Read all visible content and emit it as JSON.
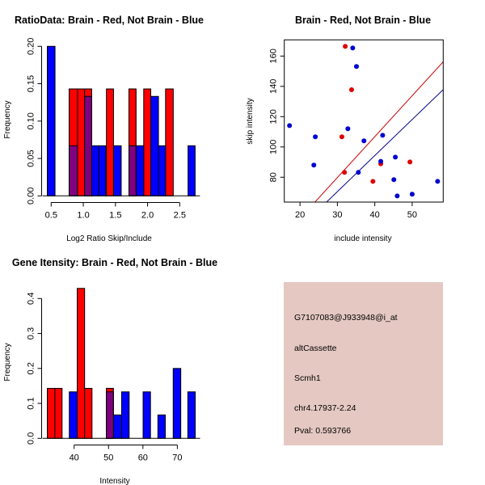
{
  "colors": {
    "red": "#ff0000",
    "blue": "#0000ff",
    "overlap": "#800080",
    "line_red": "#cc0000",
    "line_blue": "#00008b",
    "info_bg": "#e5c8c2",
    "pval": "#8b0000"
  },
  "chart_data": [
    {
      "type": "bar",
      "title": "RatioData: Brain - Red, Not Brain - Blue",
      "xlabel": "Log2 Ratio Skip/Include",
      "ylabel": "Frequency",
      "xticks": [
        "0.5",
        "1.0",
        "1.5",
        "2.0",
        "2.5"
      ],
      "xtick_values": [
        0.5,
        1.0,
        1.5,
        2.0,
        2.5
      ],
      "yticks": [
        "0.00",
        "0.05",
        "0.10",
        "0.15",
        "0.20"
      ],
      "ytick_values": [
        0,
        0.05,
        0.1,
        0.15,
        0.2
      ],
      "series": [
        {
          "name": "Brain",
          "color": "red",
          "bins": [
            [
              0.78,
              0.91,
              0.143
            ],
            [
              0.91,
              1.02,
              0.143
            ],
            [
              1.02,
              1.13,
              0.143
            ],
            [
              1.36,
              1.47,
              0.143
            ],
            [
              1.71,
              1.82,
              0.143
            ],
            [
              1.94,
              2.05,
              0.143
            ],
            [
              2.28,
              2.4,
              0.143
            ]
          ]
        },
        {
          "name": "Not Brain",
          "color": "blue",
          "bins": [
            [
              0.44,
              0.56,
              0.2
            ],
            [
              0.78,
              0.91,
              0.067
            ],
            [
              1.02,
              1.13,
              0.133
            ],
            [
              1.13,
              1.24,
              0.067
            ],
            [
              1.24,
              1.35,
              0.067
            ],
            [
              1.47,
              1.59,
              0.067
            ],
            [
              1.71,
              1.82,
              0.067
            ],
            [
              1.82,
              1.94,
              0.067
            ],
            [
              2.05,
              2.17,
              0.133
            ],
            [
              2.17,
              2.28,
              0.067
            ],
            [
              2.63,
              2.74,
              0.067
            ]
          ]
        }
      ]
    },
    {
      "type": "scatter",
      "title": "Brain - Red, Not Brain - Blue",
      "xlabel": "include intensity",
      "ylabel": "skip intensity",
      "xlim": [
        15.8,
        58.3
      ],
      "ylim": [
        63.6,
        170.7
      ],
      "xticks": [
        "20",
        "30",
        "40",
        "50"
      ],
      "xtick_values": [
        20,
        30,
        40,
        50
      ],
      "yticks": [
        "80",
        "100",
        "120",
        "140",
        "160"
      ],
      "ytick_values": [
        80,
        100,
        120,
        140,
        160
      ],
      "series": [
        {
          "name": "Brain",
          "color": "red",
          "points": [
            [
              32.1,
              166.4
            ],
            [
              33.8,
              137.8
            ],
            [
              31.2,
              106.7
            ],
            [
              31.9,
              83.2
            ],
            [
              39.5,
              77.3
            ],
            [
              41.6,
              88.9
            ],
            [
              49.4,
              90.1
            ]
          ],
          "fit": {
            "slope": 2.7,
            "intercept": -1.2
          }
        },
        {
          "name": "Not Brain",
          "color": "blue",
          "points": [
            [
              17.2,
              114.1
            ],
            [
              34.1,
              165.3
            ],
            [
              35.1,
              153.1
            ],
            [
              32.8,
              112.0
            ],
            [
              24.1,
              106.7
            ],
            [
              23.7,
              88.0
            ],
            [
              37.1,
              104.0
            ],
            [
              42.1,
              107.7
            ],
            [
              41.6,
              90.5
            ],
            [
              45.5,
              93.3
            ],
            [
              35.6,
              83.2
            ],
            [
              45.1,
              78.4
            ],
            [
              46.0,
              67.7
            ],
            [
              50.0,
              68.8
            ],
            [
              56.8,
              77.3
            ]
          ],
          "fit": {
            "slope": 2.38,
            "intercept": -0.9
          }
        }
      ]
    },
    {
      "type": "bar",
      "title": "Gene Itensity: Brain - Red, Not Brain - Blue",
      "xlabel": "Intensity",
      "ylabel": "Frequency",
      "xticks": [
        "40",
        "50",
        "60",
        "70"
      ],
      "xtick_values": [
        40,
        50,
        60,
        70
      ],
      "yticks": [
        "0.0",
        "0.1",
        "0.2",
        "0.3",
        "0.4"
      ],
      "ytick_values": [
        0,
        0.1,
        0.2,
        0.3,
        0.4
      ],
      "series": [
        {
          "name": "Brain",
          "color": "red",
          "bins": [
            [
              32.2,
              34.4,
              0.143
            ],
            [
              34.4,
              36.5,
              0.143
            ],
            [
              40.9,
              43.05,
              0.429
            ],
            [
              43.05,
              45.2,
              0.143
            ],
            [
              49.4,
              51.4,
              0.143
            ]
          ]
        },
        {
          "name": "Not Brain",
          "color": "blue",
          "bins": [
            [
              38.6,
              40.9,
              0.133
            ],
            [
              49.4,
              51.4,
              0.133
            ],
            [
              51.4,
              53.8,
              0.067
            ],
            [
              53.8,
              56.0,
              0.133
            ],
            [
              60.05,
              62.2,
              0.133
            ],
            [
              64.35,
              66.5,
              0.067
            ],
            [
              68.8,
              71.0,
              0.2
            ],
            [
              73.05,
              75.2,
              0.133
            ]
          ]
        }
      ]
    }
  ],
  "info": {
    "probe": "G7107083@J933948@i_at",
    "event_type": "altCassette",
    "gene": "Scmh1",
    "location": "chr4.17937-2.24",
    "pval": "Pval: 0.593766"
  }
}
